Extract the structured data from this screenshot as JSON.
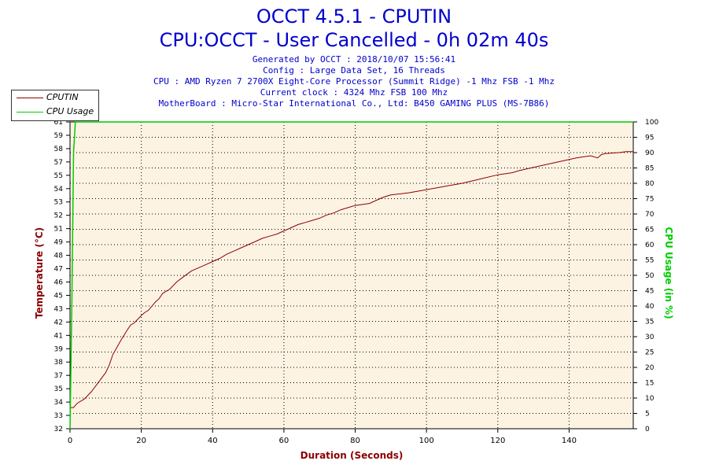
{
  "header": {
    "title": "OCCT 4.5.1 - CPUTIN",
    "subtitle": "CPU:OCCT - User Cancelled - 0h 02m 40s",
    "info_lines": [
      "Generated by OCCT : 2018/10/07 15:56:41",
      "Config : Large Data Set, 16 Threads",
      "CPU : AMD Ryzen 7 2700X Eight-Core Processor (Summit Ridge) -1 Mhz FSB -1 Mhz",
      "Current clock : 4324 Mhz FSB 100 Mhz",
      "MotherBoard : Micro-Star International Co., Ltd: B450 GAMING PLUS (MS-7B86)"
    ]
  },
  "colors": {
    "title": "#0000cc",
    "temperature": "#8b0000",
    "cpu_usage": "#00cc00",
    "plot_background": "#fdf3e3",
    "grid": "#000000"
  },
  "chart_data": {
    "type": "line",
    "xlabel": "Duration (Seconds)",
    "ylabel": "Temperature (°C)",
    "y2label": "CPU Usage (in %)",
    "xlim": [
      0,
      158
    ],
    "ylim": [
      32,
      61
    ],
    "y2lim": [
      0,
      100
    ],
    "x_ticks": [
      "0",
      "20",
      "40",
      "60",
      "80",
      "100",
      "120",
      "140"
    ],
    "y_ticks": [
      "32",
      "33",
      "34",
      "35",
      "37",
      "38",
      "39",
      "41",
      "42",
      "43",
      "45",
      "46",
      "47",
      "48",
      "49",
      "51",
      "52",
      "53",
      "54",
      "55",
      "57",
      "58",
      "59",
      "61"
    ],
    "y2_ticks": [
      "0",
      "5",
      "10",
      "15",
      "20",
      "25",
      "30",
      "35",
      "40",
      "45",
      "50",
      "55",
      "60",
      "65",
      "70",
      "75",
      "80",
      "85",
      "90",
      "95",
      "100"
    ],
    "grid": true,
    "legend_position": "top-left",
    "series": [
      {
        "name": "CPUTIN",
        "axis": "left",
        "x": [
          0,
          1,
          2,
          4,
          6,
          8,
          10,
          11,
          12,
          14,
          16,
          17,
          18,
          20,
          21,
          22,
          24,
          25,
          26,
          28,
          30,
          32,
          34,
          36,
          38,
          40,
          42,
          44,
          46,
          48,
          50,
          52,
          54,
          56,
          58,
          60,
          62,
          64,
          66,
          68,
          70,
          72,
          74,
          76,
          78,
          80,
          84,
          86,
          88,
          90,
          95,
          100,
          105,
          110,
          115,
          120,
          124,
          126,
          130,
          134,
          138,
          142,
          146,
          148,
          149,
          150,
          154,
          156,
          158
        ],
        "values": [
          34.0,
          34.0,
          34.4,
          34.8,
          35.5,
          36.4,
          37.3,
          38.0,
          39.0,
          40.2,
          41.3,
          41.8,
          42.0,
          42.7,
          43.0,
          43.2,
          44.0,
          44.3,
          44.8,
          45.2,
          45.9,
          46.4,
          46.9,
          47.2,
          47.5,
          47.8,
          48.1,
          48.5,
          48.8,
          49.1,
          49.4,
          49.7,
          50.0,
          50.2,
          50.4,
          50.7,
          51.0,
          51.3,
          51.5,
          51.7,
          51.9,
          52.2,
          52.4,
          52.7,
          52.9,
          53.1,
          53.3,
          53.6,
          53.9,
          54.1,
          54.3,
          54.6,
          54.9,
          55.2,
          55.6,
          56.0,
          56.2,
          56.4,
          56.7,
          57.0,
          57.3,
          57.6,
          57.8,
          57.6,
          57.9,
          58.0,
          58.1,
          58.2,
          58.2
        ]
      },
      {
        "name": "CPU Usage",
        "axis": "right",
        "x": [
          0,
          0.5,
          1,
          1.5,
          158
        ],
        "values": [
          0,
          40,
          90,
          100,
          100
        ]
      }
    ]
  }
}
